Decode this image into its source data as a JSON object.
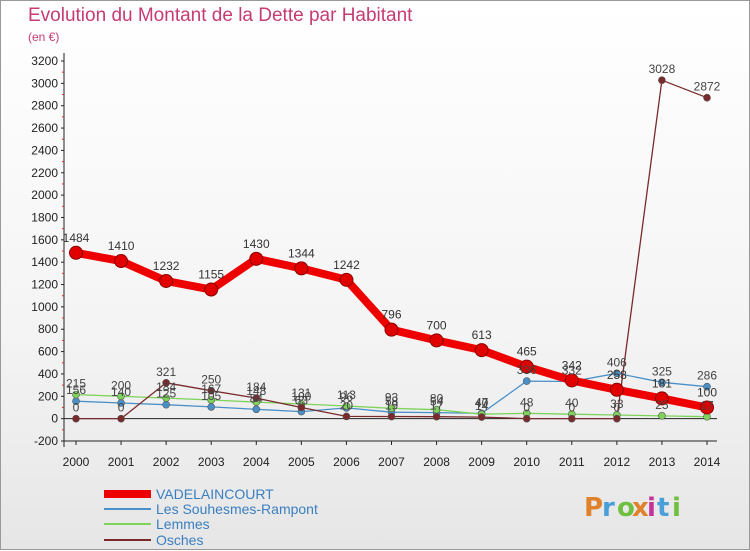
{
  "title": "Evolution du Montant de la Dette par Habitant",
  "subtitle": "(en €)",
  "logo": {
    "text": "Proxiti",
    "colors": [
      "#e0812b",
      "#4a9fd8",
      "#6fbf40",
      "#e0812b",
      "#c6329a",
      "#4a9fd8",
      "#6fbf40"
    ]
  },
  "colors": {
    "title": "#c63b73",
    "legend_text": "#3a7fc1"
  },
  "chart_data": {
    "type": "line",
    "title": "Evolution du Montant de la Dette par Habitant",
    "subtitle": "(en €)",
    "xlabel": "",
    "ylabel": "",
    "x": [
      2000,
      2001,
      2002,
      2003,
      2004,
      2005,
      2006,
      2007,
      2008,
      2009,
      2010,
      2011,
      2012,
      2013,
      2014
    ],
    "ylim": [
      -200,
      3200
    ],
    "yticks": [
      -200,
      0,
      200,
      400,
      600,
      800,
      1000,
      1200,
      1400,
      1600,
      1800,
      2000,
      2200,
      2400,
      2600,
      2800,
      3000,
      3200
    ],
    "grid": false,
    "legend_position": "bottom-left",
    "series": [
      {
        "name": "VADELAINCOURT",
        "color": "#ee0000",
        "width": 8,
        "values": [
          1484,
          1410,
          1232,
          1155,
          1430,
          1344,
          1242,
          796,
          700,
          613,
          465,
          342,
          258,
          181,
          100
        ],
        "labels": [
          "1484",
          "1410",
          "1232",
          "1155",
          "1430",
          "1344",
          "1242",
          "796",
          "700",
          "613",
          "465",
          "342",
          "258",
          "181",
          "100"
        ]
      },
      {
        "name": "Les Souhesmes-Rampont",
        "color": "#4a90c8",
        "width": 1.3,
        "values": [
          156,
          140,
          125,
          105,
          84,
          63,
          96,
          58,
          54,
          47,
          336,
          332,
          406,
          325,
          286
        ],
        "labels": [
          "156",
          "140",
          "125",
          "105",
          "84",
          "63",
          "96",
          "58",
          "54",
          "47",
          "336",
          "332",
          "406",
          "325",
          "286"
        ]
      },
      {
        "name": "Lemmes",
        "color": "#7ed35a",
        "width": 1.3,
        "values": [
          215,
          200,
          184,
          167,
          148,
          131,
          113,
          93,
          80,
          40,
          48,
          40,
          33,
          25,
          17
        ],
        "labels": [
          "215",
          "200",
          "184",
          "167",
          "148",
          "131",
          "113",
          "93",
          "80",
          "40",
          "48",
          "40",
          "33",
          "25",
          "17"
        ]
      },
      {
        "name": "Osches",
        "color": "#7a2a2a",
        "width": 1.3,
        "values": [
          0,
          0,
          321,
          250,
          184,
          100,
          20,
          19,
          17,
          14,
          0,
          0,
          0,
          3028,
          2872
        ],
        "labels": [
          "0",
          "0",
          "321",
          "250",
          "184",
          "100",
          "20",
          "19",
          "17",
          "14",
          "0",
          "0",
          "0",
          "3028",
          "2872"
        ]
      }
    ]
  }
}
